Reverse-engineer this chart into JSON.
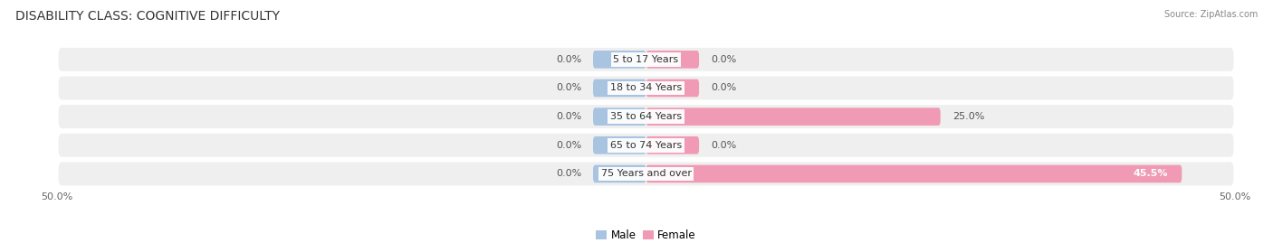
{
  "title": "DISABILITY CLASS: COGNITIVE DIFFICULTY",
  "source": "Source: ZipAtlas.com",
  "categories": [
    "5 to 17 Years",
    "18 to 34 Years",
    "35 to 64 Years",
    "65 to 74 Years",
    "75 Years and over"
  ],
  "male_values": [
    0.0,
    0.0,
    0.0,
    0.0,
    0.0
  ],
  "female_values": [
    0.0,
    0.0,
    25.0,
    0.0,
    45.5
  ],
  "male_labels": [
    "0.0%",
    "0.0%",
    "0.0%",
    "0.0%",
    "0.0%"
  ],
  "female_labels": [
    "0.0%",
    "0.0%",
    "25.0%",
    "0.0%",
    "45.5%"
  ],
  "male_color": "#a8c4e0",
  "female_color": "#f09ab5",
  "row_bg_color": "#efefef",
  "xlim": 50.0,
  "bar_height": 0.62,
  "stub": 4.5,
  "title_fontsize": 10,
  "label_fontsize": 8,
  "category_fontsize": 8,
  "legend_fontsize": 8.5,
  "axis_label_fontsize": 8,
  "background_color": "#ffffff"
}
